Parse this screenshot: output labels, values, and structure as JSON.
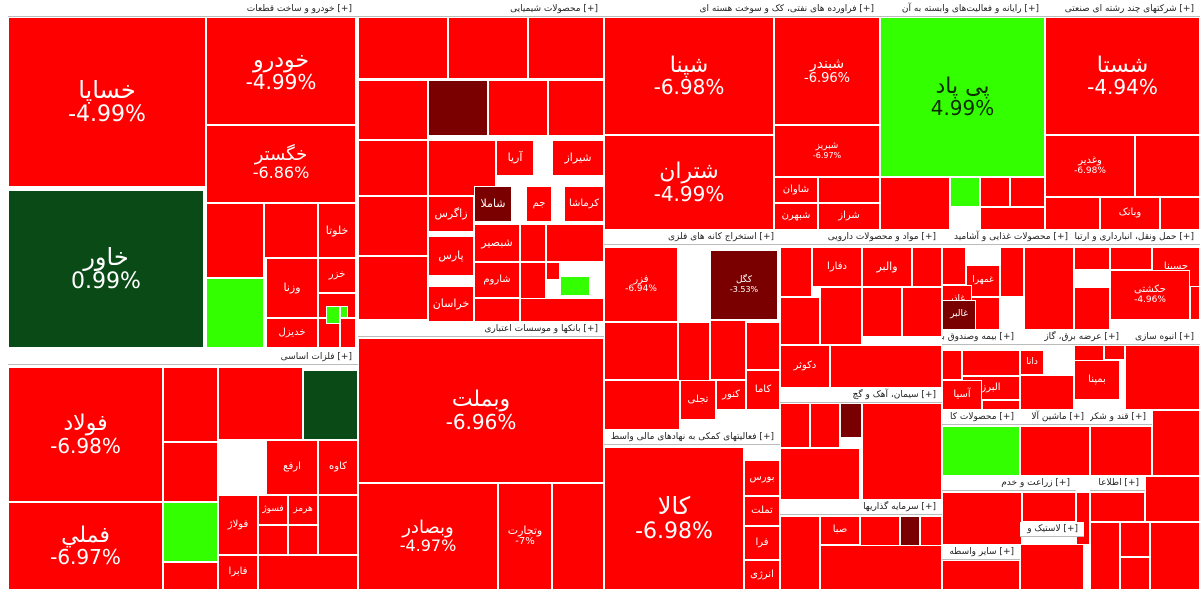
{
  "chart_data": {
    "type": "treemap",
    "colors": {
      "down": "#ff0000",
      "up": "#33ff00",
      "up_dark": "#0a4a16",
      "down_dark": "#7a0000"
    },
    "sectors": [
      {
        "id": "auto",
        "title": "[+] خودرو و ساخت قطعات",
        "tiles": [
          {
            "symbol": "خساپا",
            "change": "-4.99%"
          },
          {
            "symbol": "خودرو",
            "change": "-4.99%"
          },
          {
            "symbol": "خاور",
            "change": "0.99%"
          },
          {
            "symbol": "خگستر",
            "change": "-6.86%"
          },
          {
            "symbol": "خلوتا",
            "change": ""
          },
          {
            "symbol": "خزر",
            "change": ""
          },
          {
            "symbol": "وزنا",
            "change": ""
          },
          {
            "symbol": "خدیزل",
            "change": ""
          }
        ]
      },
      {
        "id": "chem",
        "title": "[+] محصولات شیمیایی",
        "tiles": [
          {
            "symbol": "آریا",
            "change": ""
          },
          {
            "symbol": "شیراز",
            "change": ""
          },
          {
            "symbol": "شاملا",
            "change": ""
          },
          {
            "symbol": "زاگرس",
            "change": ""
          },
          {
            "symbol": "جم",
            "change": ""
          },
          {
            "symbol": "کرماشا",
            "change": ""
          },
          {
            "symbol": "شبصیر",
            "change": ""
          },
          {
            "symbol": "پارس",
            "change": ""
          },
          {
            "symbol": "شاروم",
            "change": ""
          },
          {
            "symbol": "خراسان",
            "change": ""
          }
        ]
      },
      {
        "id": "oil",
        "title": "[+] فراورده های نفتی، کک و سوخت هسته ای",
        "tiles": [
          {
            "symbol": "شپنا",
            "change": "-6.98%"
          },
          {
            "symbol": "شبندر",
            "change": "-6.96%"
          },
          {
            "symbol": "شتران",
            "change": "-4.99%"
          },
          {
            "symbol": "شبریز",
            "change": "-6.97%"
          },
          {
            "symbol": "شاوان",
            "change": ""
          },
          {
            "symbol": "شراز",
            "change": ""
          },
          {
            "symbol": "شبهرن",
            "change": ""
          }
        ]
      },
      {
        "id": "it",
        "title": "[+] رایانه و فعالیت‌های وابسته به آن",
        "tiles": [
          {
            "symbol": "پی پاد",
            "change": "4.99%"
          }
        ]
      },
      {
        "id": "multi",
        "title": "[+] شرکتهای چند رشته ای صنعتی",
        "tiles": [
          {
            "symbol": "شستا",
            "change": "-4.94%"
          },
          {
            "symbol": "وغدیر",
            "change": "-6.98%"
          },
          {
            "symbol": "وبانک",
            "change": ""
          }
        ]
      },
      {
        "id": "metal",
        "title": "[+] فلزات اساسی",
        "tiles": [
          {
            "symbol": "فولاد",
            "change": "-6.98%"
          },
          {
            "symbol": "فملي",
            "change": "-6.97%"
          },
          {
            "symbol": "کاوه",
            "change": ""
          },
          {
            "symbol": "ارفع",
            "change": ""
          },
          {
            "symbol": "هرمز",
            "change": ""
          },
          {
            "symbol": "فسوژ",
            "change": ""
          },
          {
            "symbol": "فولاژ",
            "change": ""
          },
          {
            "symbol": "فابرا",
            "change": ""
          }
        ]
      },
      {
        "id": "bank",
        "title": "[+] بانکها و موسسات اعتباری",
        "tiles": [
          {
            "symbol": "وبملت",
            "change": "-6.96%"
          },
          {
            "symbol": "وبصادر",
            "change": "-4.97%"
          },
          {
            "symbol": "وتجارت",
            "change": "-7%"
          }
        ]
      },
      {
        "id": "mining",
        "title": "[+] استخراج کانه های فلزی",
        "tiles": [
          {
            "symbol": "فزر",
            "change": "-6.94%"
          },
          {
            "symbol": "کگل",
            "change": "-3.53%"
          },
          {
            "symbol": "کنور",
            "change": ""
          },
          {
            "symbol": "تجلی",
            "change": ""
          },
          {
            "symbol": "کاما",
            "change": ""
          }
        ]
      },
      {
        "id": "pharma",
        "title": "[+] مواد و محصولات دارویی",
        "tiles": [
          {
            "symbol": "والبر",
            "change": ""
          },
          {
            "symbol": "دفارا",
            "change": ""
          },
          {
            "symbol": "دکوثر",
            "change": ""
          }
        ]
      },
      {
        "id": "food",
        "title": "[+] محصولات غذایی و آشامید",
        "tiles": [
          {
            "symbol": "غمهرا",
            "change": ""
          },
          {
            "symbol": "غاذر",
            "change": ""
          },
          {
            "symbol": "غالبر",
            "change": ""
          }
        ]
      },
      {
        "id": "transport",
        "title": "[+] حمل ونقل، انبارداری و ارتبا",
        "tiles": [
          {
            "symbol": "حسینا",
            "change": ""
          },
          {
            "symbol": "حکشتی",
            "change": "-4.96%"
          }
        ]
      },
      {
        "id": "finance",
        "title": "[+] فعالیتهای کمکی به نهادهای مالی واسط",
        "tiles": [
          {
            "symbol": "کالا",
            "change": "-6.98%"
          },
          {
            "symbol": "بورس",
            "change": ""
          },
          {
            "symbol": "تملت",
            "change": ""
          },
          {
            "symbol": "فرا",
            "change": ""
          },
          {
            "symbol": "انرژی",
            "change": ""
          }
        ]
      },
      {
        "id": "cement",
        "title": "[+] سیمان، آهک و گچ",
        "tiles": []
      },
      {
        "id": "invest",
        "title": "[+] سرمایه گذاریها",
        "tiles": [
          {
            "symbol": "صبا",
            "change": ""
          }
        ]
      },
      {
        "id": "insurance",
        "title": "[+] بیمه وصندوق بازن",
        "tiles": [
          {
            "symbol": "دانا",
            "change": ""
          },
          {
            "symbol": "البرز",
            "change": ""
          },
          {
            "symbol": "آسیا",
            "change": ""
          }
        ]
      },
      {
        "id": "power",
        "title": "[+] عرضه برق، گاز",
        "tiles": [
          {
            "symbol": "مبین",
            "change": ""
          },
          {
            "symbol": "بمپنا",
            "change": ""
          }
        ]
      },
      {
        "id": "build",
        "title": "[+] انبوه سازی",
        "tiles": []
      },
      {
        "id": "sugar",
        "title": "[+] قند و شکر",
        "tiles": []
      },
      {
        "id": "machine",
        "title": "[+] ماشین آلا",
        "tiles": []
      },
      {
        "id": "products",
        "title": "[+] محصولات کا",
        "tiles": []
      },
      {
        "id": "agri",
        "title": "[+] زراعت و خدم",
        "tiles": []
      },
      {
        "id": "other",
        "title": "[+] سایر واسطه",
        "tiles": []
      },
      {
        "id": "comm",
        "title": "[+] اطلاعا",
        "tiles": []
      },
      {
        "id": "plastic",
        "title": "[+] لاستیک و",
        "tiles": []
      }
    ]
  }
}
